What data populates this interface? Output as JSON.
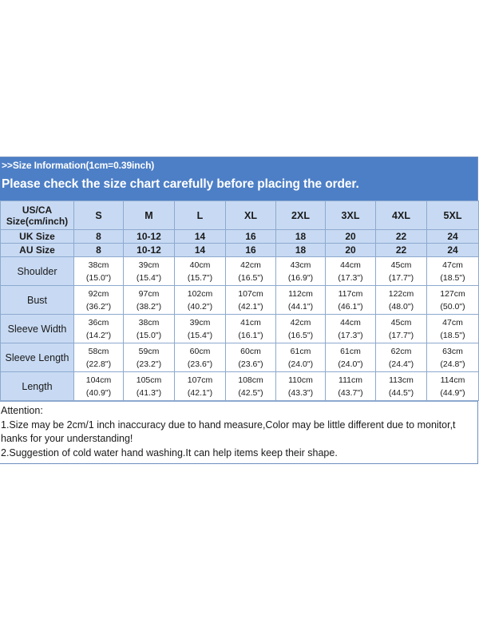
{
  "banner": {
    "info": ">>Size Information(1cm=0.39inch)",
    "notice": "Please check the size chart carefully before placing the order."
  },
  "header": {
    "first_line1": "US/CA",
    "first_line2": "Size(cm/inch)",
    "sizes": [
      "S",
      "M",
      "L",
      "XL",
      "2XL",
      "3XL",
      "4XL",
      "5XL"
    ]
  },
  "uk": {
    "label": "UK Size",
    "values": [
      "8",
      "10-12",
      "14",
      "16",
      "18",
      "20",
      "22",
      "24"
    ]
  },
  "au": {
    "label": "AU Size",
    "values": [
      "8",
      "10-12",
      "14",
      "16",
      "18",
      "20",
      "22",
      "24"
    ]
  },
  "rows": [
    {
      "label": "Shoulder",
      "cm": [
        "38cm",
        "39cm",
        "40cm",
        "42cm",
        "43cm",
        "44cm",
        "45cm",
        "47cm"
      ],
      "in": [
        "(15.0\")",
        "(15.4\")",
        "(15.7\")",
        "(16.5\")",
        "(16.9\")",
        "(17.3\")",
        "(17.7\")",
        "(18.5\")"
      ]
    },
    {
      "label": "Bust",
      "cm": [
        "92cm",
        "97cm",
        "102cm",
        "107cm",
        "112cm",
        "117cm",
        "122cm",
        "127cm"
      ],
      "in": [
        "(36.2\")",
        "(38.2\")",
        "(40.2\")",
        "(42.1\")",
        "(44.1\")",
        "(46.1\")",
        "(48.0\")",
        "(50.0\")"
      ]
    },
    {
      "label": "Sleeve Width",
      "cm": [
        "36cm",
        "38cm",
        "39cm",
        "41cm",
        "42cm",
        "44cm",
        "45cm",
        "47cm"
      ],
      "in": [
        "(14.2\")",
        "(15.0\")",
        "(15.4\")",
        "(16.1\")",
        "(16.5\")",
        "(17.3\")",
        "(17.7\")",
        "(18.5\")"
      ]
    },
    {
      "label": "Sleeve Length",
      "cm": [
        "58cm",
        "59cm",
        "60cm",
        "60cm",
        "61cm",
        "61cm",
        "62cm",
        "63cm"
      ],
      "in": [
        "(22.8\")",
        "(23.2\")",
        "(23.6\")",
        "(23.6\")",
        "(24.0\")",
        "(24.0\")",
        "(24.4\")",
        "(24.8\")"
      ]
    },
    {
      "label": "Length",
      "cm": [
        "104cm",
        "105cm",
        "107cm",
        "108cm",
        "110cm",
        "111cm",
        "113cm",
        "114cm"
      ],
      "in": [
        "(40.9\")",
        "(41.3\")",
        "(42.1\")",
        "(42.5\")",
        "(43.3\")",
        "(43.7\")",
        "(44.5\")",
        "(44.9\")"
      ]
    }
  ],
  "notes": {
    "title": "Attention:",
    "line1": "1.Size may be 2cm/1 inch inaccuracy due to hand measure,Color may be little different due to monitor,t hanks for your understanding!",
    "line2": "2.Suggestion of cold water hand washing.It can help items keep their shape."
  },
  "colors": {
    "banner": "#4d7fc6",
    "header_cell": "#c8daf3",
    "border": "#8da9cf"
  }
}
